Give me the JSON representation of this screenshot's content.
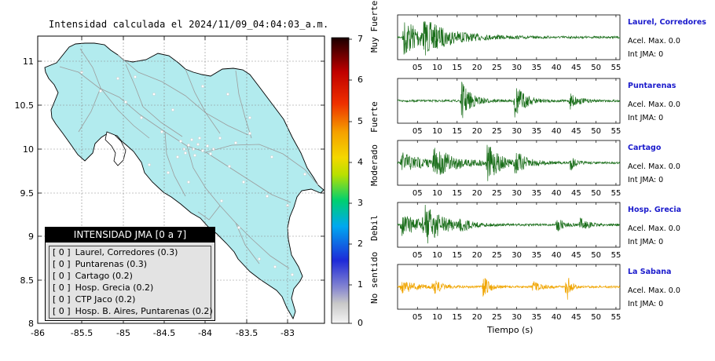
{
  "map": {
    "title": "Intensidad calculada el 2024/11/09_04:04:03_a.m.",
    "x_ticks": [
      "-86",
      "-85.5",
      "-85",
      "-84.5",
      "-84",
      "-83.5",
      "-83"
    ],
    "y_ticks": [
      "11",
      "10.5",
      "10",
      "9.5",
      "9",
      "8.5",
      "8"
    ],
    "land_color": "#b2ebee",
    "road_color": "#9c9c9c"
  },
  "legend": {
    "title": "INTENSIDAD JMA [0 a 7]",
    "items": [
      {
        "level": "[ 0 ]",
        "label": "Laurel, Corredores (0.3)"
      },
      {
        "level": "[ 0 ]",
        "label": "Puntarenas (0.3)"
      },
      {
        "level": "[ 0 ]",
        "label": "Cartago (0.2)"
      },
      {
        "level": "[ 0 ]",
        "label": "Hosp. Grecia (0.2)"
      },
      {
        "level": "[ 0 ]",
        "label": "CTP Jaco (0.2)"
      },
      {
        "level": "[ 0 ]",
        "label": "Hosp. B. Aires, Puntarenas (0.2)"
      }
    ]
  },
  "scale": {
    "numbers": [
      "7",
      "6",
      "5",
      "4",
      "3",
      "2",
      "1",
      "0"
    ],
    "words": [
      "Muy Fuerte",
      "Fuerte",
      "Moderado",
      "Debil",
      "No sentido"
    ]
  },
  "chart_data": {
    "type": "line",
    "xlabel": "Tiempo (s)",
    "x_ticks": [
      "05",
      "10",
      "15",
      "20",
      "25",
      "30",
      "35",
      "40",
      "45",
      "50",
      "55"
    ],
    "series": [
      {
        "name": "Laurel, Corredores",
        "acel": "Acel. Max. 0.0",
        "jma": "Int JMA: 0",
        "color": "#1a6e1a",
        "bursts": [
          [
            1.5,
            0.95,
            5
          ],
          [
            6.5,
            0.55,
            8
          ]
        ]
      },
      {
        "name": "Puntarenas",
        "acel": "Acel. Max. 0.0",
        "jma": "Int JMA: 0",
        "color": "#1a6e1a",
        "bursts": [
          [
            16,
            0.95,
            2.5
          ],
          [
            29.5,
            0.85,
            2.5
          ],
          [
            43.5,
            0.4,
            2
          ]
        ]
      },
      {
        "name": "Cartago",
        "acel": "Acel. Max. 0.0",
        "jma": "Int JMA: 0",
        "color": "#1a6e1a",
        "bursts": [
          [
            1,
            0.5,
            6
          ],
          [
            9,
            0.6,
            6
          ],
          [
            22.5,
            0.9,
            3
          ],
          [
            29.5,
            0.5,
            3
          ],
          [
            43.5,
            0.4,
            1.2
          ]
        ]
      },
      {
        "name": "Hosp. Grecia",
        "acel": "Acel. Max. 0.0",
        "jma": "Int JMA: 0",
        "color": "#1a6e1a",
        "bursts": [
          [
            1,
            0.5,
            6
          ],
          [
            6.5,
            0.95,
            4
          ],
          [
            15.5,
            0.3,
            2
          ],
          [
            40,
            0.4,
            1.5
          ],
          [
            46,
            0.3,
            2
          ]
        ]
      },
      {
        "name": "La Sabana",
        "acel": "Acel. Max. 0.0",
        "jma": "Int JMA: 0",
        "color": "#f0a500",
        "bursts": [
          [
            1,
            0.35,
            3
          ],
          [
            9,
            0.35,
            2
          ],
          [
            21.5,
            0.6,
            1.5
          ],
          [
            42.5,
            1.0,
            0.8
          ],
          [
            34,
            0.25,
            2
          ]
        ]
      }
    ],
    "xlim": [
      0,
      56
    ]
  }
}
